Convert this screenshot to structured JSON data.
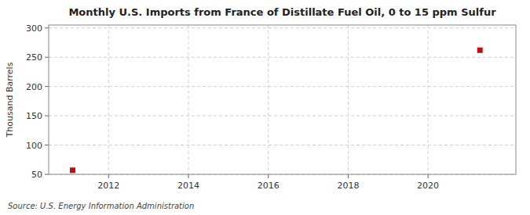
{
  "chart_data": {
    "type": "scatter",
    "title": "Monthly U.S. Imports from France of Distillate Fuel Oil, 0 to 15 ppm Sulfur",
    "ylabel": "Thousand Barrels",
    "source": "Source: U.S. Energy Information Administration",
    "x": [
      2011.1,
      2021.3
    ],
    "values": [
      57,
      262
    ],
    "color": "#bb1111",
    "marker": "square",
    "xlim": [
      2010.5,
      2022.2
    ],
    "ylim": [
      50,
      305
    ],
    "xticks": [
      2012,
      2014,
      2016,
      2018,
      2020
    ],
    "yticks": [
      50,
      100,
      150,
      200,
      250,
      300
    ],
    "grid": true
  }
}
